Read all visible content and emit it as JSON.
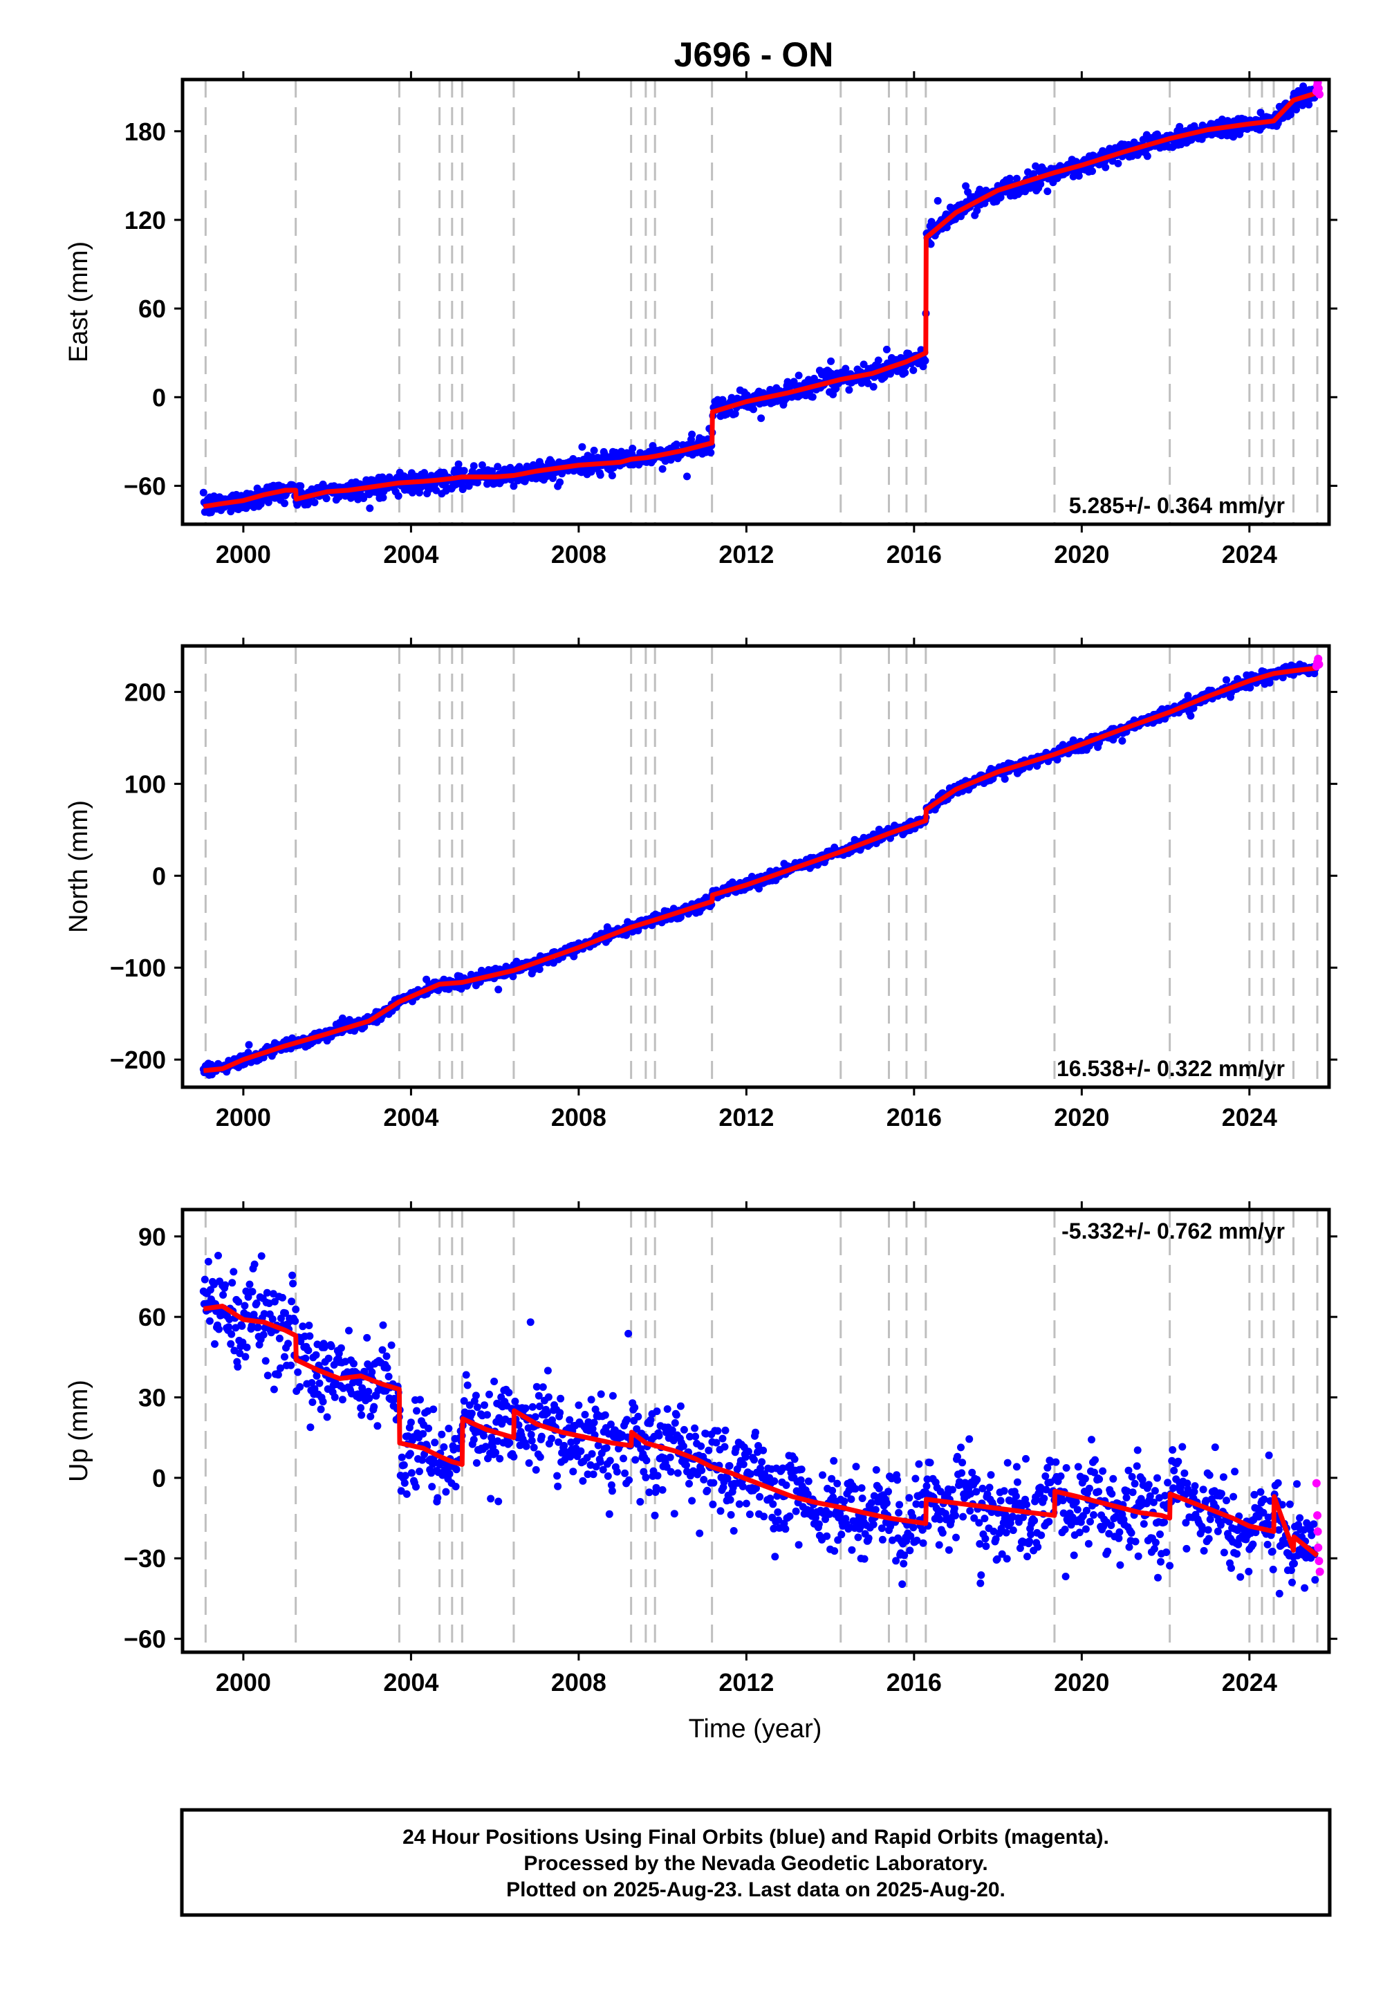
{
  "figure": {
    "title": "J696 - ON",
    "x_axis_label": "Time (year)",
    "caption": [
      "24 Hour Positions Using Final Orbits (blue) and Rapid Orbits (magenta).",
      "Processed by the Nevada Geodetic Laboratory.",
      "Plotted on 2025-Aug-23. Last data on 2025-Aug-20."
    ]
  },
  "colors": {
    "final_orbits": "#0000ff",
    "rapid_orbits": "#ff00ff",
    "model": "#ff0000",
    "equipment_change": "#bfbfbf"
  },
  "chart_data": [
    {
      "type": "scatter",
      "component": "east",
      "ylabel": "East (mm)",
      "xlim": [
        1998.55,
        2025.9
      ],
      "ylim": [
        -86,
        215
      ],
      "yticks": [
        -60,
        0,
        60,
        120,
        180
      ],
      "xticks": [
        2000,
        2004,
        2008,
        2012,
        2016,
        2020,
        2024
      ],
      "rate_text": "5.285+/- 0.364 mm/yr",
      "rate_position": "bottom-right",
      "event_lines": [
        1999.1,
        2001.25,
        2003.72,
        2004.68,
        2004.98,
        2005.22,
        2006.45,
        2009.25,
        2009.6,
        2009.82,
        2011.18,
        2014.25,
        2015.4,
        2015.82,
        2016.28,
        2019.35,
        2022.1,
        2024.0,
        2024.3,
        2024.58,
        2025.05,
        2025.62
      ],
      "noise_mm": 3.4,
      "model_curve": {
        "x": [
          1999.05,
          1999.5,
          2000.0,
          2000.5,
          2001.0,
          2001.25,
          2001.26,
          2002.0,
          2002.5,
          2003.0,
          2003.72,
          2004.3,
          2004.68,
          2004.98,
          2005.22,
          2006.0,
          2006.45,
          2007.0,
          2008.0,
          2009.0,
          2009.25,
          2009.6,
          2009.82,
          2010.5,
          2011.18,
          2011.19,
          2012.0,
          2013.0,
          2014.25,
          2015.0,
          2015.4,
          2015.82,
          2016.28,
          2016.29,
          2017.0,
          2018.0,
          2019.35,
          2020.0,
          2021.0,
          2022.1,
          2023.0,
          2024.0,
          2024.3,
          2024.58,
          2025.05,
          2025.62
        ],
        "y": [
          -74,
          -72,
          -70,
          -66,
          -63,
          -63,
          -69,
          -64,
          -63,
          -61,
          -58,
          -57,
          -56,
          -55,
          -54,
          -54,
          -53,
          -50,
          -46,
          -44,
          -42,
          -41,
          -40,
          -36,
          -31,
          -10,
          -3,
          3,
          12,
          16,
          20,
          24,
          30,
          108,
          125,
          140,
          152,
          157,
          166,
          175,
          181,
          185,
          186,
          187,
          201,
          206
        ]
      },
      "rapid_points": {
        "x": [
          2025.6,
          2025.62,
          2025.63,
          2025.65,
          2025.67
        ],
        "y": [
          207,
          211,
          213,
          209,
          205
        ]
      }
    },
    {
      "type": "scatter",
      "component": "north",
      "ylabel": "North (mm)",
      "xlim": [
        1998.55,
        2025.9
      ],
      "ylim": [
        -230,
        250
      ],
      "yticks": [
        -200,
        -100,
        0,
        100,
        200
      ],
      "xticks": [
        2000,
        2004,
        2008,
        2012,
        2016,
        2020,
        2024
      ],
      "rate_text": "16.538+/- 0.322 mm/yr",
      "rate_position": "bottom-right",
      "event_lines": [
        1999.1,
        2001.25,
        2003.72,
        2004.68,
        2004.98,
        2005.22,
        2006.45,
        2009.25,
        2009.6,
        2009.82,
        2011.18,
        2014.25,
        2015.4,
        2015.82,
        2016.28,
        2019.35,
        2022.1,
        2024.0,
        2024.3,
        2024.58,
        2025.05,
        2025.62
      ],
      "noise_mm": 3.0,
      "model_curve": {
        "x": [
          1999.05,
          1999.5,
          2000.0,
          2001.0,
          2002.0,
          2003.0,
          2003.72,
          2004.68,
          2005.22,
          2006.45,
          2008.0,
          2009.25,
          2009.82,
          2011.18,
          2011.19,
          2012.0,
          2014.25,
          2015.4,
          2016.28,
          2016.29,
          2017.0,
          2018.0,
          2019.35,
          2020.0,
          2021.0,
          2022.1,
          2023.0,
          2024.0,
          2024.58,
          2025.05,
          2025.62
        ],
        "y": [
          -212,
          -210,
          -200,
          -185,
          -172,
          -158,
          -137,
          -118,
          -116,
          -103,
          -78,
          -56,
          -48,
          -28,
          -21,
          -10,
          26,
          46,
          60,
          72,
          94,
          113,
          132,
          143,
          160,
          178,
          195,
          212,
          220,
          223,
          226
        ]
      },
      "rapid_points": {
        "x": [
          2025.6,
          2025.62,
          2025.64,
          2025.66
        ],
        "y": [
          228,
          232,
          236,
          230
        ]
      }
    },
    {
      "type": "scatter",
      "component": "up",
      "ylabel": "Up (mm)",
      "xlim": [
        1998.55,
        2025.9
      ],
      "ylim": [
        -65,
        100
      ],
      "yticks": [
        -60,
        -30,
        0,
        30,
        60,
        90
      ],
      "xticks": [
        2000,
        2004,
        2008,
        2012,
        2016,
        2020,
        2024
      ],
      "rate_text": "-5.332+/- 0.762 mm/yr",
      "rate_position": "top-right",
      "event_lines": [
        1999.1,
        2001.25,
        2003.72,
        2004.68,
        2004.98,
        2005.22,
        2006.45,
        2009.25,
        2009.6,
        2009.82,
        2011.18,
        2014.25,
        2015.4,
        2015.82,
        2016.28,
        2019.35,
        2022.1,
        2024.0,
        2024.3,
        2024.58,
        2025.05,
        2025.62
      ],
      "noise_mm": 8.0,
      "model_curve": {
        "x": [
          1999.05,
          1999.5,
          2000.0,
          2000.5,
          2001.0,
          2001.25,
          2001.26,
          2001.8,
          2002.3,
          2002.8,
          2003.3,
          2003.72,
          2003.73,
          2004.3,
          2004.68,
          2004.98,
          2005.22,
          2005.23,
          2005.8,
          2006.45,
          2006.46,
          2007.0,
          2007.6,
          2008.2,
          2008.8,
          2009.25,
          2009.26,
          2009.6,
          2009.82,
          2010.3,
          2010.8,
          2011.18,
          2011.6,
          2012.1,
          2012.6,
          2013.1,
          2013.6,
          2014.25,
          2014.8,
          2015.4,
          2015.82,
          2016.28,
          2016.29,
          2016.8,
          2017.3,
          2017.8,
          2018.3,
          2018.8,
          2019.35,
          2019.36,
          2019.9,
          2020.4,
          2020.9,
          2021.4,
          2021.9,
          2022.1,
          2022.11,
          2022.6,
          2023.1,
          2023.6,
          2024.0,
          2024.3,
          2024.58,
          2024.59,
          2025.05,
          2025.06,
          2025.62
        ],
        "y": [
          63,
          64,
          59,
          58,
          55,
          53,
          44,
          40,
          37,
          38,
          35,
          33,
          13,
          11,
          8,
          6,
          5,
          22,
          18,
          15,
          25,
          20,
          17,
          15,
          13,
          12,
          17,
          13,
          12,
          10,
          7,
          4,
          2,
          -1,
          -4,
          -7,
          -9,
          -11,
          -13,
          -15,
          -16,
          -17,
          -8,
          -9,
          -10,
          -11,
          -12,
          -13,
          -14,
          -5,
          -7,
          -9,
          -11,
          -13,
          -14,
          -15,
          -6,
          -9,
          -12,
          -15,
          -18,
          -19,
          -20,
          -7,
          -27,
          -22,
          -29
        ]
      },
      "rapid_points": {
        "x": [
          2025.6,
          2025.62,
          2025.63,
          2025.64,
          2025.66,
          2025.68
        ],
        "y": [
          -2,
          -14,
          -20,
          -26,
          -31,
          -35
        ]
      }
    }
  ]
}
